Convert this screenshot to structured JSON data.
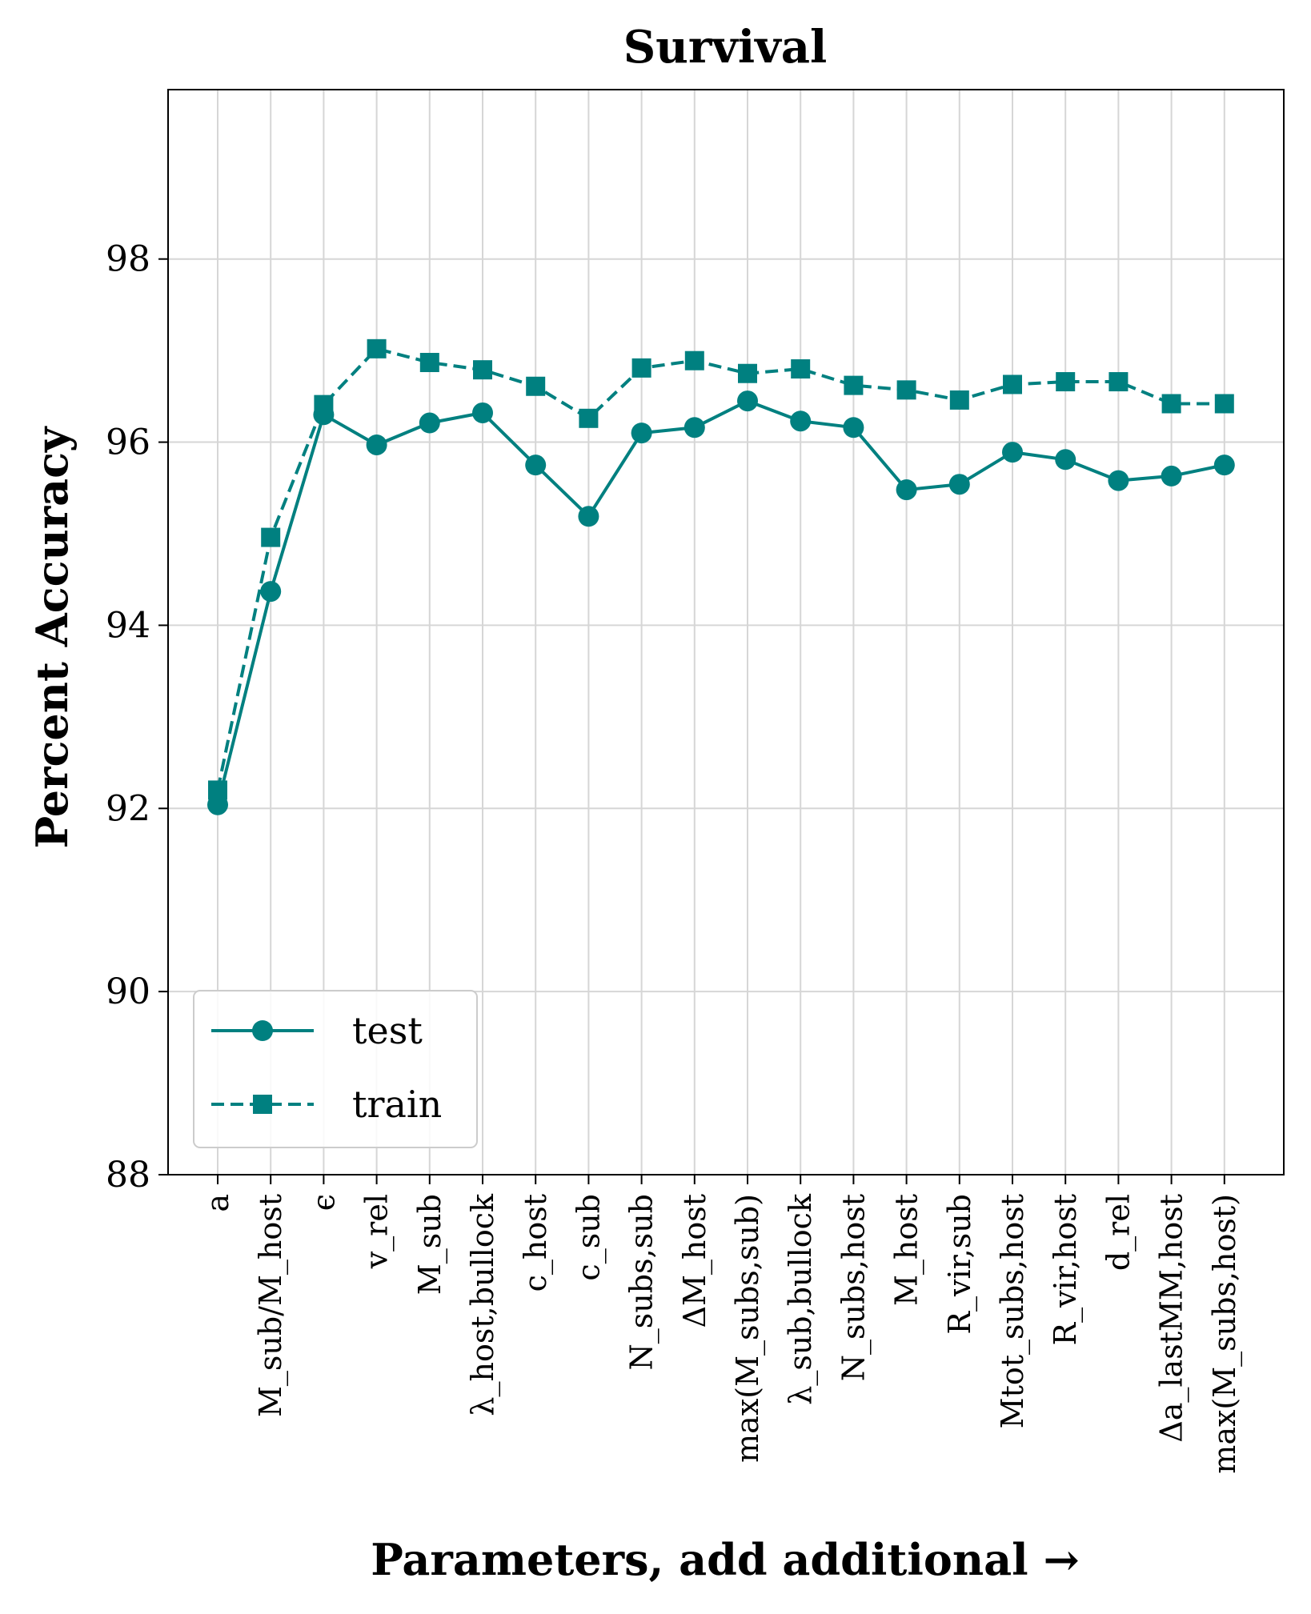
{
  "chart_data": {
    "type": "line",
    "title": "Survival",
    "xlabel": "Parameters, add additional →",
    "ylabel": "Percent Accuracy",
    "ylim": [
      88,
      99.85
    ],
    "yticks": [
      "88",
      "90",
      "92",
      "94",
      "96",
      "98"
    ],
    "grid": true,
    "legend_position": "lower-left",
    "categories": [
      "a",
      "M_sub/M_host",
      "ϵ",
      "v_rel",
      "M_sub",
      "λ_host,bullock",
      "c_host",
      "c_sub",
      "N_subs,sub",
      "ΔM_host",
      "max(M_subs,sub)",
      "λ_sub,bullock",
      "N_subs,host",
      "M_host",
      "R_vir,sub",
      "Mtot_subs,host",
      "R_vir,host",
      "d_rel",
      "Δa_lastMM,host",
      "max(M_subs,host)"
    ],
    "series": [
      {
        "name": "test",
        "marker": "circle",
        "linestyle": "solid",
        "values": [
          92.04,
          94.37,
          96.3,
          95.97,
          96.21,
          96.32,
          95.75,
          95.19,
          96.1,
          96.16,
          96.45,
          96.23,
          96.16,
          95.48,
          95.54,
          95.89,
          95.81,
          95.58,
          95.63,
          95.75
        ]
      },
      {
        "name": "train",
        "marker": "square",
        "linestyle": "dashed",
        "values": [
          92.2,
          94.96,
          96.41,
          97.02,
          96.87,
          96.79,
          96.61,
          96.26,
          96.81,
          96.89,
          96.75,
          96.8,
          96.62,
          96.57,
          96.46,
          96.63,
          96.66,
          96.66,
          96.42,
          96.42
        ]
      }
    ],
    "color": "#008080"
  }
}
